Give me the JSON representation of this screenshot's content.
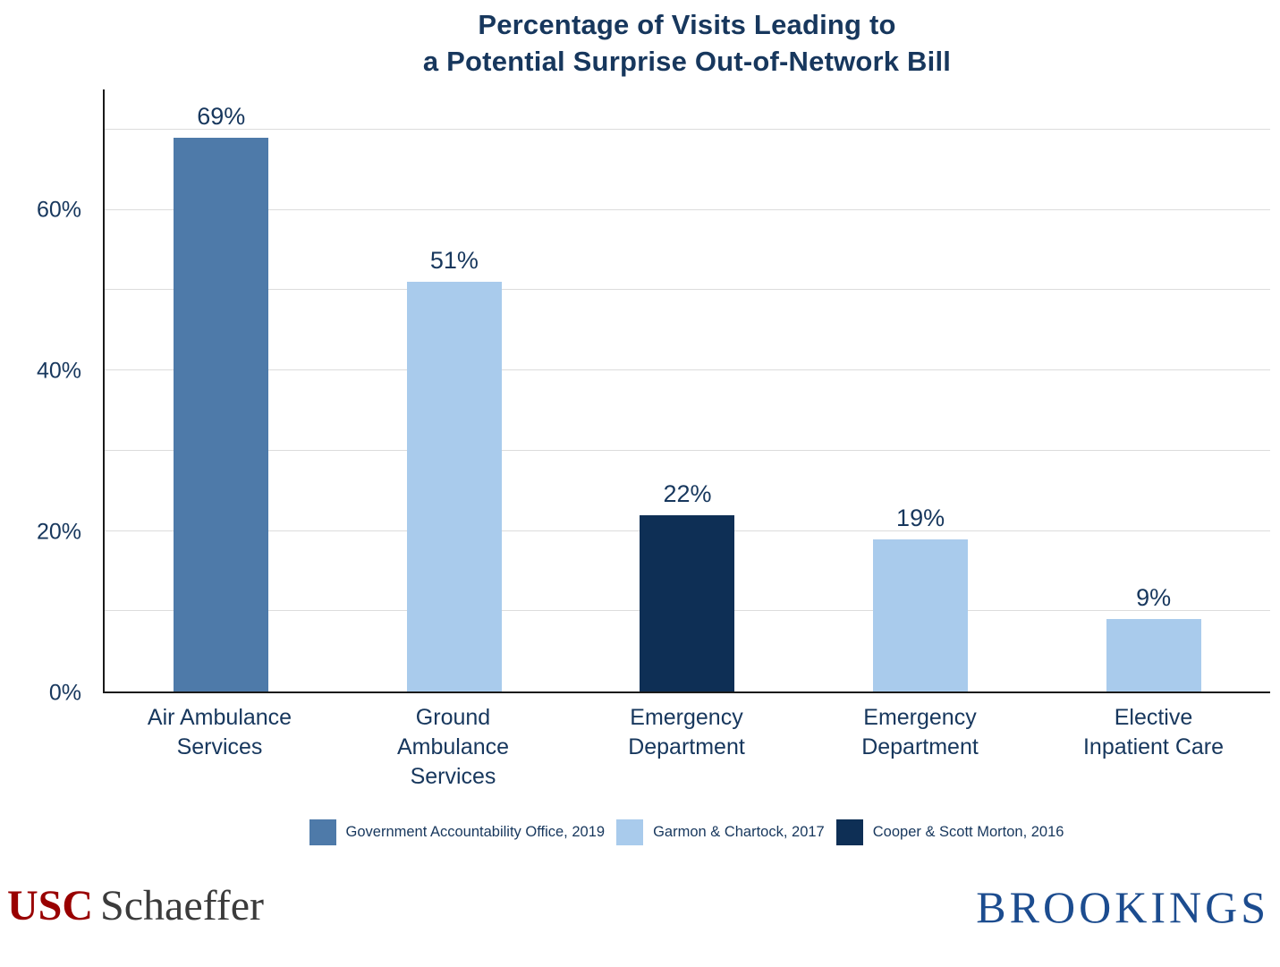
{
  "chart_data": {
    "type": "bar",
    "title": "Percentage of Visits Leading to a Potential Surprise Out-of-Network Bill",
    "title_lines": [
      "Percentage of Visits Leading to",
      "a Potential Surprise Out-of-Network Bill"
    ],
    "categories": [
      "Air Ambulance\nServices",
      "Ground\nAmbulance\nServices",
      "Emergency\nDepartment",
      "Emergency\nDepartment",
      "Elective\nInpatient Care"
    ],
    "values": [
      69,
      51,
      22,
      19,
      9
    ],
    "value_labels": [
      "69%",
      "51%",
      "22%",
      "19%",
      "9%"
    ],
    "bar_colors": [
      "#4e7aa9",
      "#a9cbec",
      "#0e2f55",
      "#a9cbec",
      "#a9cbec"
    ],
    "xlabel": "",
    "ylabel": "",
    "ylim": [
      0,
      75
    ],
    "yticks": [
      0,
      20,
      40,
      60
    ],
    "ytick_labels": [
      "0%",
      "20%",
      "40%",
      "60%"
    ],
    "gridlines": [
      10,
      20,
      30,
      40,
      50,
      60,
      70
    ],
    "grid": true,
    "legend_position": "bottom",
    "legend": [
      {
        "label": "Government Accountability Office, 2019",
        "color": "#4e7aa9"
      },
      {
        "label": "Garmon & Chartock, 2017",
        "color": "#a9cbec"
      },
      {
        "label": "Cooper & Scott Morton, 2016",
        "color": "#0e2f55"
      }
    ]
  },
  "footer": {
    "usc": "USC",
    "schaeffer": "Schaeffer",
    "brookings": "BROOKINGS"
  }
}
